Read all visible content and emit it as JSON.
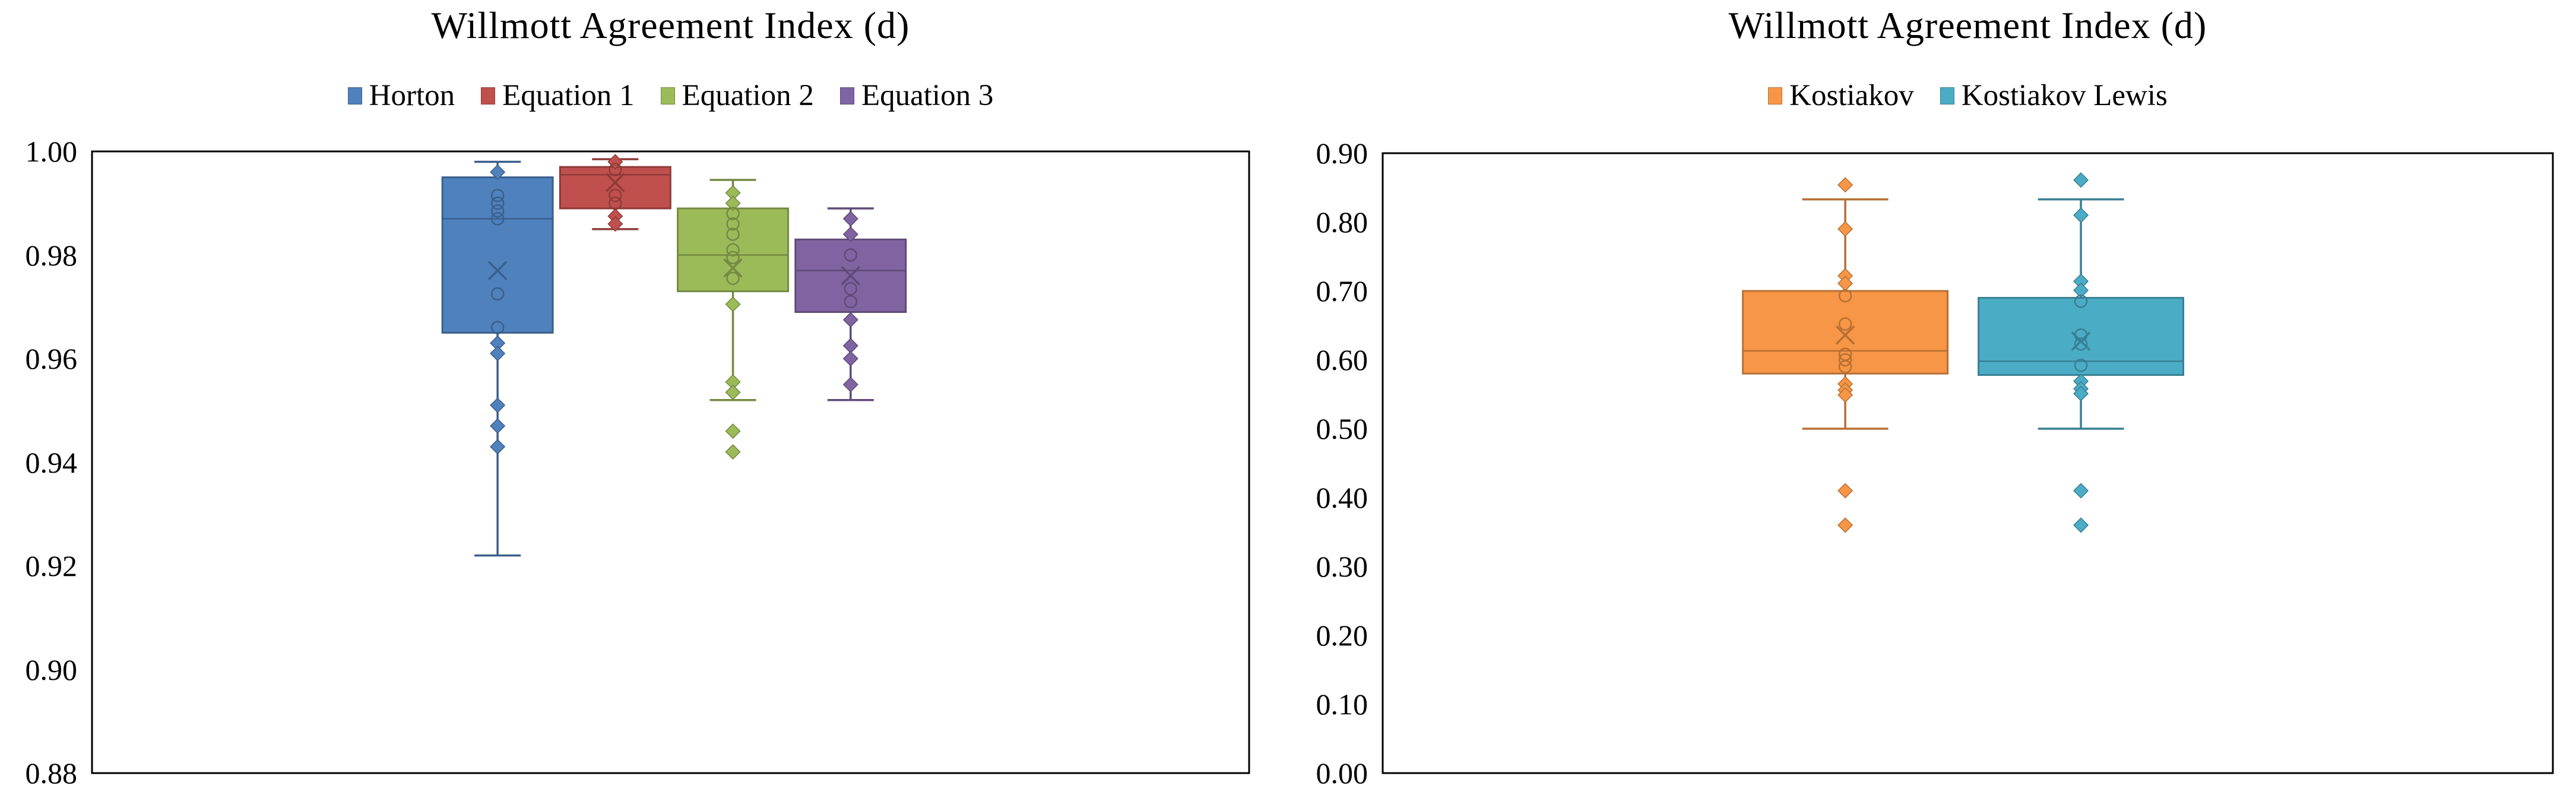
{
  "chart_data": [
    {
      "type": "box",
      "title": "Willmott Agreement Index (d)",
      "xlabel": "",
      "ylabel": "",
      "ylim": [
        0.88,
        1.0
      ],
      "ytick_step": 0.02,
      "tick_decimals": 2,
      "grid": false,
      "legend_position": "top",
      "series": [
        {
          "name": "Horton",
          "color": "#4F81BD",
          "box": {
            "whisker_low": 0.922,
            "q1": 0.965,
            "median": 0.987,
            "q3": 0.995,
            "whisker_high": 0.998,
            "mean": 0.977
          },
          "diamond_points": [
            0.996,
            0.963,
            0.961,
            0.951,
            0.947,
            0.943
          ],
          "circle_points": [
            0.9915,
            0.99,
            0.9885,
            0.987,
            0.9725,
            0.966
          ]
        },
        {
          "name": "Equation 1",
          "color": "#C0504D",
          "box": {
            "whisker_low": 0.985,
            "q1": 0.989,
            "median": 0.9955,
            "q3": 0.997,
            "whisker_high": 0.9985,
            "mean": 0.994
          },
          "diamond_points": [
            0.998,
            0.9875,
            0.986
          ],
          "circle_points": [
            0.9965,
            0.9915,
            0.99
          ]
        },
        {
          "name": "Equation 2",
          "color": "#9BBB59",
          "box": {
            "whisker_low": 0.952,
            "q1": 0.973,
            "median": 0.98,
            "q3": 0.989,
            "whisker_high": 0.9945,
            "mean": 0.9775
          },
          "diamond_points": [
            0.992,
            0.99,
            0.9705,
            0.9555,
            0.9535,
            0.946,
            0.942
          ],
          "circle_points": [
            0.988,
            0.986,
            0.984,
            0.981,
            0.9795,
            0.9755
          ]
        },
        {
          "name": "Equation 3",
          "color": "#8064A2",
          "box": {
            "whisker_low": 0.952,
            "q1": 0.969,
            "median": 0.977,
            "q3": 0.983,
            "whisker_high": 0.989,
            "mean": 0.976
          },
          "diamond_points": [
            0.987,
            0.984,
            0.9675,
            0.9625,
            0.96,
            0.955
          ],
          "circle_points": [
            0.98,
            0.9735,
            0.971
          ]
        }
      ]
    },
    {
      "type": "box",
      "title": "Willmott Agreement Index (d)",
      "xlabel": "",
      "ylabel": "",
      "ylim": [
        0.0,
        0.9
      ],
      "ytick_step": 0.1,
      "tick_decimals": 2,
      "grid": false,
      "legend_position": "top",
      "series": [
        {
          "name": "Kostiakov",
          "color": "#F79646",
          "box": {
            "whisker_low": 0.5,
            "q1": 0.58,
            "median": 0.613,
            "q3": 0.7,
            "whisker_high": 0.833,
            "mean": 0.636
          },
          "diamond_points": [
            0.854,
            0.79,
            0.722,
            0.711,
            0.565,
            0.556,
            0.549,
            0.41,
            0.36
          ],
          "circle_points": [
            0.693,
            0.652,
            0.608,
            0.6,
            0.59
          ]
        },
        {
          "name": "Kostiakov Lewis",
          "color": "#4BACC6",
          "box": {
            "whisker_low": 0.5,
            "q1": 0.578,
            "median": 0.598,
            "q3": 0.69,
            "whisker_high": 0.833,
            "mean": 0.627
          },
          "diamond_points": [
            0.861,
            0.81,
            0.714,
            0.701,
            0.569,
            0.558,
            0.551,
            0.41,
            0.36
          ],
          "circle_points": [
            0.685,
            0.636,
            0.623,
            0.592
          ]
        }
      ]
    }
  ]
}
